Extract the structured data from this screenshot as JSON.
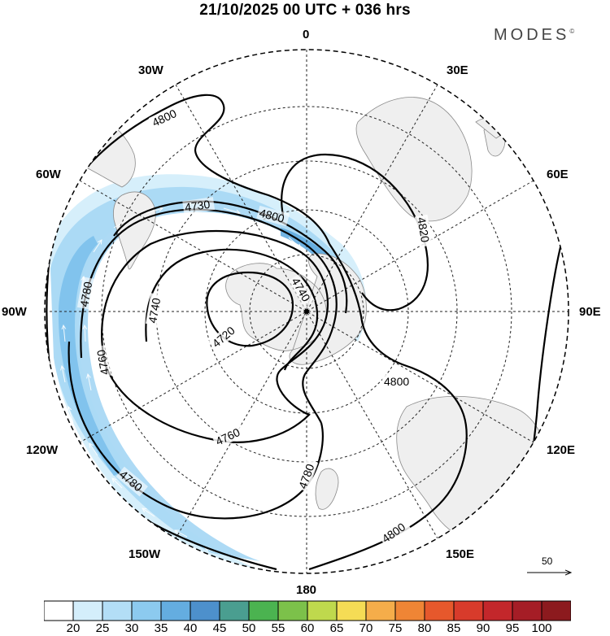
{
  "header": {
    "title": "21/10/2025  00 UTC  + 036 hrs",
    "brand": "MODES",
    "brand_mark": "©"
  },
  "map": {
    "projection": "south-polar-stereographic",
    "longitude_labels": {
      "top": "0",
      "top_left": "30W",
      "top_right": "30E",
      "upper_left": "60W",
      "upper_right": "60E",
      "left": "90W",
      "right": "90E",
      "lower_left": "120W",
      "lower_right": "120E",
      "bottom_left": "150W",
      "bottom_right": "150E",
      "bottom": "180"
    },
    "contours": [
      {
        "id": "c4800-top",
        "label": "4800"
      },
      {
        "id": "c4730",
        "label": "4730"
      },
      {
        "id": "c4800-mid",
        "label": "4800"
      },
      {
        "id": "c4820",
        "label": "4820"
      },
      {
        "id": "c4780-left",
        "label": "4780"
      },
      {
        "id": "c4740-left",
        "label": "4740"
      },
      {
        "id": "c4740-right",
        "label": "4740"
      },
      {
        "id": "c4720",
        "label": "4720"
      },
      {
        "id": "c4760-left",
        "label": "4760"
      },
      {
        "id": "c4800-right",
        "label": "4800"
      },
      {
        "id": "c4760-bottom",
        "label": "4760"
      },
      {
        "id": "c4780-bottom",
        "label": "4780"
      },
      {
        "id": "c4780-lowleft",
        "label": "4780"
      },
      {
        "id": "c4800-lowright",
        "label": "4800"
      }
    ],
    "wind_vector_scale": {
      "label": "50"
    }
  },
  "colorbar": {
    "labels": [
      "20",
      "25",
      "30",
      "35",
      "40",
      "45",
      "50",
      "55",
      "60",
      "65",
      "70",
      "75",
      "80",
      "85",
      "90",
      "95",
      "100"
    ],
    "colors": [
      "#ffffff",
      "#d4eefb",
      "#b3def6",
      "#8ccaef",
      "#64ade0",
      "#4d90cc",
      "#4a9e90",
      "#4bb350",
      "#7cc14a",
      "#bfd94d",
      "#f5dc55",
      "#f5ad4a",
      "#ef8535",
      "#e6582c",
      "#d83b2b",
      "#c3272b",
      "#a51d26",
      "#8c1a1e"
    ]
  }
}
